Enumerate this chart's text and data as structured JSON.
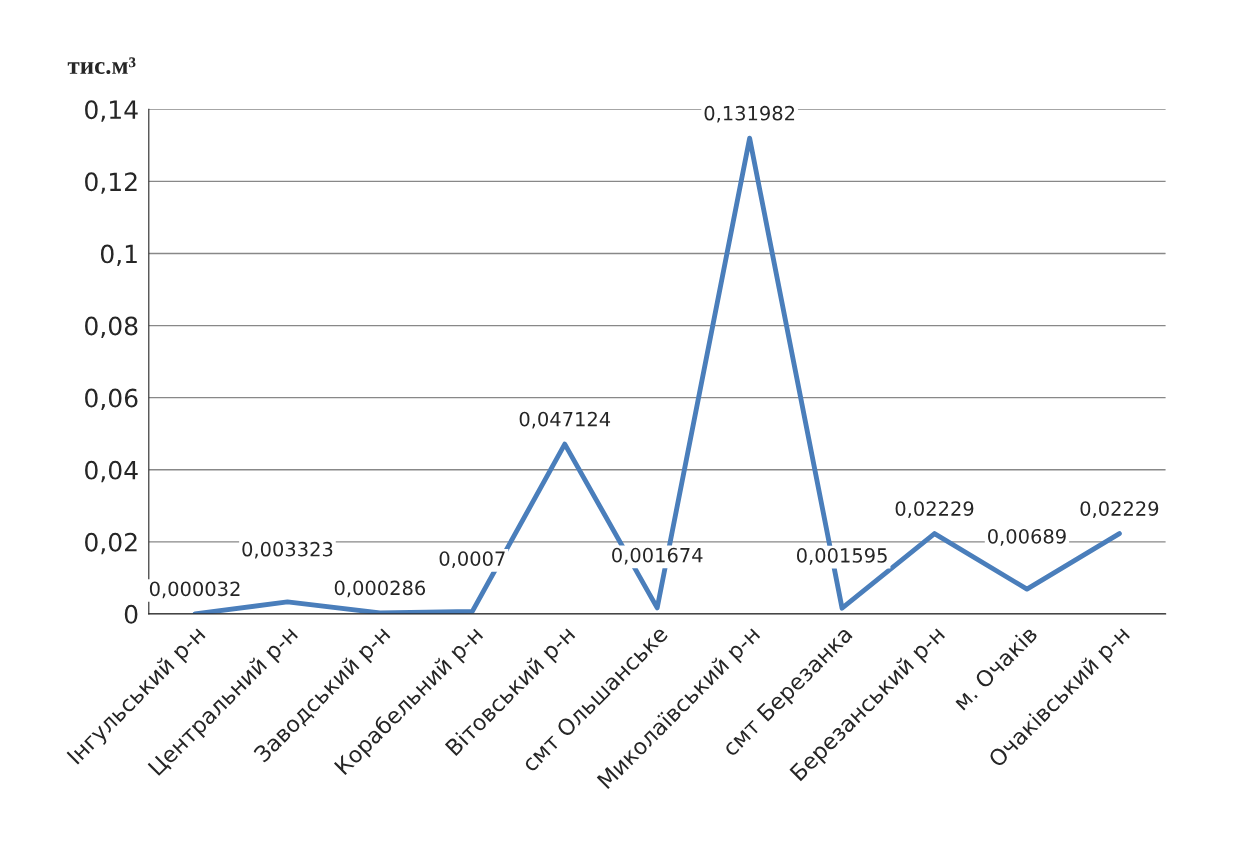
{
  "chart_data": {
    "type": "line",
    "ylabel": "тис.м³",
    "categories": [
      "Інгульський р-н",
      "Центральний р-н",
      "Заводський р-н",
      "Корабельний р-н",
      "Вітовський р-н",
      "смт Ольшанське",
      "Миколаївський р-н",
      "смт Березанка",
      "Березанський р-н",
      "м. Очаків",
      "Очаківський р-н"
    ],
    "series": [
      {
        "color": "#4a7ebb",
        "values": [
          3.2e-05,
          0.003323,
          0.000286,
          0.0007,
          0.047124,
          0.001674,
          0.131982,
          0.001595,
          0.02229,
          0.00689,
          0.02229
        ],
        "value_labels": [
          "0,000032",
          "0,003323",
          "0,000286",
          "0,0007",
          "0,047124",
          "0,001674",
          "0,131982",
          "0,001595",
          "0,02229",
          "0,00689",
          "0,02229"
        ]
      }
    ],
    "ylim": [
      0,
      0.14
    ],
    "yticks": [
      {
        "value": 0,
        "label": "0"
      },
      {
        "value": 0.02,
        "label": "0,02"
      },
      {
        "value": 0.04,
        "label": "0,04"
      },
      {
        "value": 0.06,
        "label": "0,06"
      },
      {
        "value": 0.08,
        "label": "0,08"
      },
      {
        "value": 0.1,
        "label": "0,1"
      },
      {
        "value": 0.12,
        "label": "0,12"
      },
      {
        "value": 0.14,
        "label": "0,14"
      }
    ],
    "grid": "y",
    "legend": false,
    "marker": "none",
    "line_style": "solid"
  }
}
